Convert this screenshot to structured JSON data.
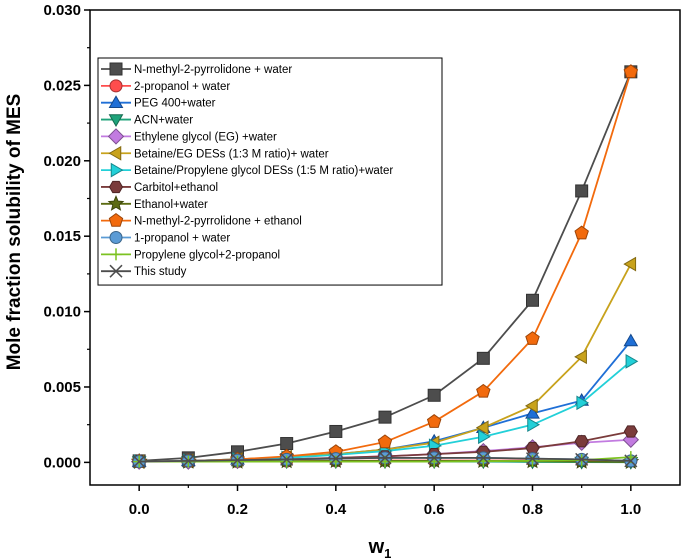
{
  "chart_data": {
    "type": "line",
    "title": "",
    "xlabel": "w",
    "xlabel_subscript": "1",
    "ylabel": "Mole fraction solubility of MES",
    "xlim": [
      -0.1,
      1.1
    ],
    "ylim": [
      -0.0015,
      0.03
    ],
    "x_ticks": [
      "0.0",
      "0.2",
      "0.4",
      "0.6",
      "0.8",
      "1.0"
    ],
    "y_ticks": [
      "0.000",
      "0.005",
      "0.010",
      "0.015",
      "0.020",
      "0.025",
      "0.030"
    ],
    "grid": false,
    "legend_position": "upper-left",
    "x": [
      0.0,
      0.1,
      0.2,
      0.3,
      0.4,
      0.5,
      0.6,
      0.7,
      0.8,
      0.9,
      1.0
    ],
    "series": [
      {
        "name": "N-methyl-2-pyrrolidone + water",
        "color": "#4d4d4d",
        "marker": "square",
        "values": [
          0.0001,
          0.0003,
          0.0007,
          0.00125,
          0.00205,
          0.003,
          0.00445,
          0.0069,
          0.01075,
          0.018,
          0.0259
        ]
      },
      {
        "name": "2-propanol + water",
        "color": "#ff4d4d",
        "marker": "circle",
        "values": [
          5e-05,
          5e-05,
          5e-05,
          8e-05,
          0.0001,
          0.00012,
          0.00012,
          0.00012,
          0.00012,
          0.0001,
          8e-05
        ]
      },
      {
        "name": "PEG 400+water",
        "color": "#1f6fd6",
        "marker": "triangle-up",
        "values": [
          5e-05,
          0.0001,
          0.0002,
          0.00035,
          0.00055,
          0.00085,
          0.0014,
          0.0023,
          0.00325,
          0.0041,
          0.00805
        ]
      },
      {
        "name": "ACN+water",
        "color": "#1fa37a",
        "marker": "triangle-down",
        "values": [
          5e-05,
          5e-05,
          5e-05,
          5e-05,
          5e-05,
          5e-05,
          5e-05,
          5e-05,
          3e-05,
          2e-05,
          1e-05
        ]
      },
      {
        "name": "Ethylene glycol (EG) +water",
        "color": "#c27be0",
        "marker": "diamond",
        "values": [
          5e-05,
          5e-05,
          0.0001,
          0.0002,
          0.0003,
          0.0004,
          0.00055,
          0.00075,
          0.001,
          0.0013,
          0.0015
        ]
      },
      {
        "name": "Betaine/EG DESs (1:3 M ratio)+ water",
        "color": "#c8a21c",
        "marker": "triangle-left",
        "values": [
          5e-05,
          0.0001,
          0.0002,
          0.00035,
          0.00055,
          0.00085,
          0.0013,
          0.0023,
          0.00375,
          0.007,
          0.01315
        ]
      },
      {
        "name": "Betaine/Propylene glycol DESs (1:5 M ratio)+water",
        "color": "#22d0d8",
        "marker": "triangle-right",
        "values": [
          5e-05,
          0.0001,
          0.0002,
          0.0003,
          0.0005,
          0.00075,
          0.0011,
          0.0017,
          0.0025,
          0.00395,
          0.0067
        ]
      },
      {
        "name": "Carbitol+ethanol",
        "color": "#7a3b3b",
        "marker": "hexagon",
        "values": [
          5e-05,
          0.0001,
          0.00015,
          0.0002,
          0.0003,
          0.0004,
          0.00055,
          0.0007,
          0.00095,
          0.0014,
          0.00205
        ]
      },
      {
        "name": "Ethanol+water",
        "color": "#5c6b12",
        "marker": "star",
        "values": [
          5e-05,
          5e-05,
          5e-05,
          8e-05,
          0.0001,
          0.0001,
          0.0001,
          0.0001,
          8e-05,
          5e-05,
          3e-05
        ]
      },
      {
        "name": "N-methyl-2-pyrrolidone + ethanol",
        "color": "#f26a0d",
        "marker": "pentagon",
        "values": [
          5e-05,
          0.0001,
          0.0002,
          0.0004,
          0.0007,
          0.00135,
          0.0027,
          0.0047,
          0.0082,
          0.0152,
          0.0259
        ]
      },
      {
        "name": "1-propanol + water",
        "color": "#5b9bd5",
        "marker": "sphere",
        "values": [
          5e-05,
          0.0001,
          0.00015,
          0.0002,
          0.00025,
          0.0003,
          0.0003,
          0.0003,
          0.00025,
          0.0002,
          0.0001
        ]
      },
      {
        "name": "Propylene glycol+2-propanol",
        "color": "#7cc221",
        "marker": "plus",
        "values": [
          5e-05,
          5e-05,
          5e-05,
          5e-05,
          5e-05,
          5e-05,
          5e-05,
          8e-05,
          0.0001,
          0.00015,
          0.00035
        ]
      },
      {
        "name": "This study",
        "color": "#4d4d4d",
        "marker": "x",
        "values": [
          5e-05,
          0.0001,
          0.00015,
          0.0002,
          0.00025,
          0.0003,
          0.0003,
          0.0003,
          0.00025,
          0.0002,
          0.0001
        ]
      }
    ]
  }
}
